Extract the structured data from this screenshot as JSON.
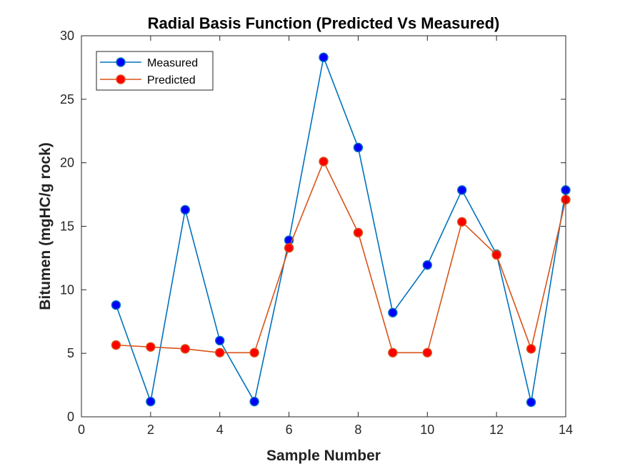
{
  "chart_data": {
    "type": "line",
    "title": "Radial Basis Function (Predicted Vs Measured)",
    "xlabel": "Sample Number",
    "ylabel": "Bitumen (mgHC/g rock)",
    "xlim": [
      0,
      14
    ],
    "ylim": [
      0,
      30
    ],
    "xticks": [
      0,
      2,
      4,
      6,
      8,
      10,
      12,
      14
    ],
    "yticks": [
      0,
      5,
      10,
      15,
      20,
      25,
      30
    ],
    "grid": false,
    "legend_position": "top-left",
    "x": [
      1,
      2,
      3,
      4,
      5,
      6,
      7,
      8,
      9,
      10,
      11,
      12,
      13,
      14
    ],
    "series": [
      {
        "name": "Measured",
        "line_color": "#0072BD",
        "marker_color": "#0000FF",
        "values": [
          8.8,
          1.2,
          16.3,
          6.0,
          1.2,
          13.9,
          28.3,
          21.2,
          8.2,
          11.95,
          17.85,
          12.8,
          1.15,
          17.85
        ]
      },
      {
        "name": "Predicted",
        "line_color": "#D95319",
        "marker_color": "#FF0000",
        "values": [
          5.65,
          5.5,
          5.35,
          5.05,
          5.05,
          13.3,
          20.1,
          14.5,
          5.05,
          5.05,
          15.35,
          12.75,
          5.35,
          17.1
        ]
      }
    ]
  }
}
